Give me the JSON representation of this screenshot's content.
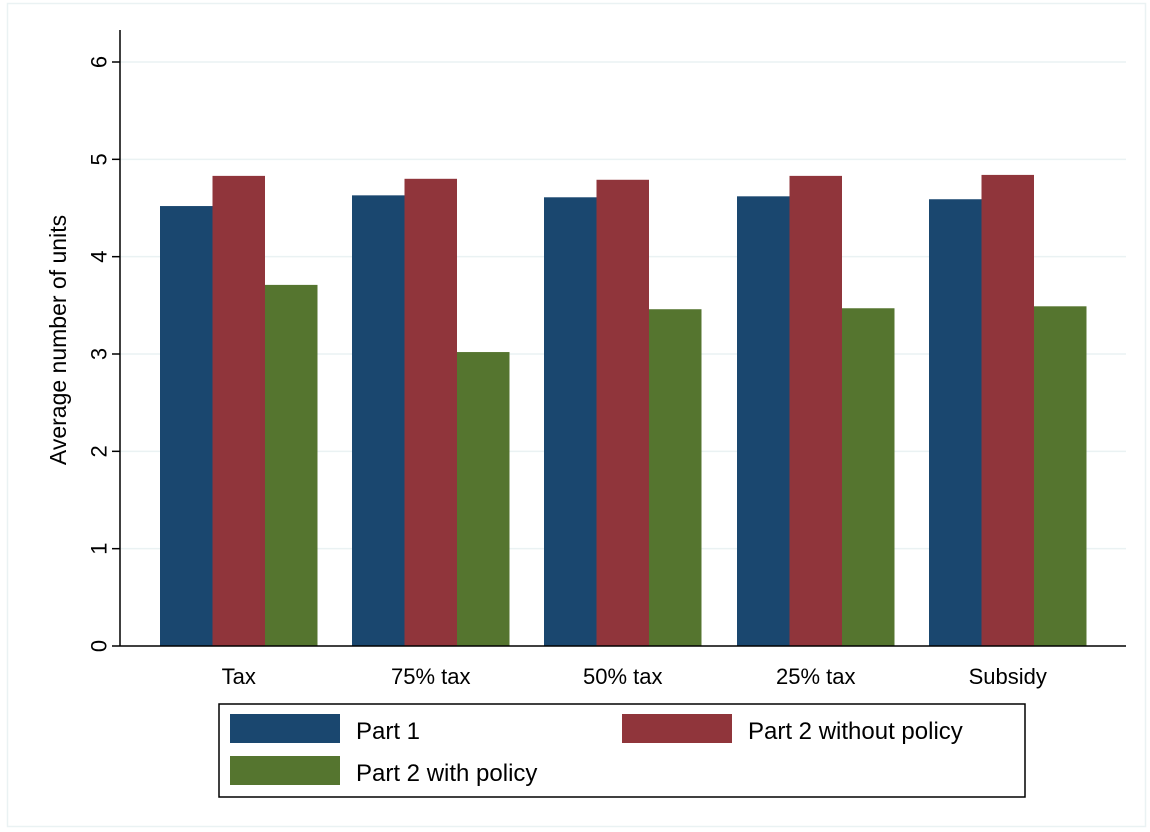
{
  "chart_data": {
    "type": "bar",
    "title": "",
    "xlabel": "",
    "ylabel": "Average number of units",
    "categories": [
      "Tax",
      "75% tax",
      "50% tax",
      "25% tax",
      "Subsidy"
    ],
    "series": [
      {
        "name": "Part 1",
        "values": [
          4.52,
          4.63,
          4.61,
          4.62,
          4.59
        ]
      },
      {
        "name": "Part 2 without policy",
        "values": [
          4.83,
          4.8,
          4.79,
          4.83,
          4.84
        ]
      },
      {
        "name": "Part 2 with policy",
        "values": [
          3.71,
          3.02,
          3.46,
          3.47,
          3.49
        ]
      }
    ],
    "ylim": [
      0,
      6
    ],
    "yticks": [
      "0",
      "1",
      "2",
      "3",
      "4",
      "5",
      "6"
    ],
    "grid": true,
    "legend_position": "bottom",
    "colors": {
      "Part 1": "#1a476f",
      "Part 2 without policy": "#90353b",
      "Part 2 with policy": "#55752f",
      "grid": "#eaf2f3",
      "frame": "#eaf2f3"
    }
  }
}
